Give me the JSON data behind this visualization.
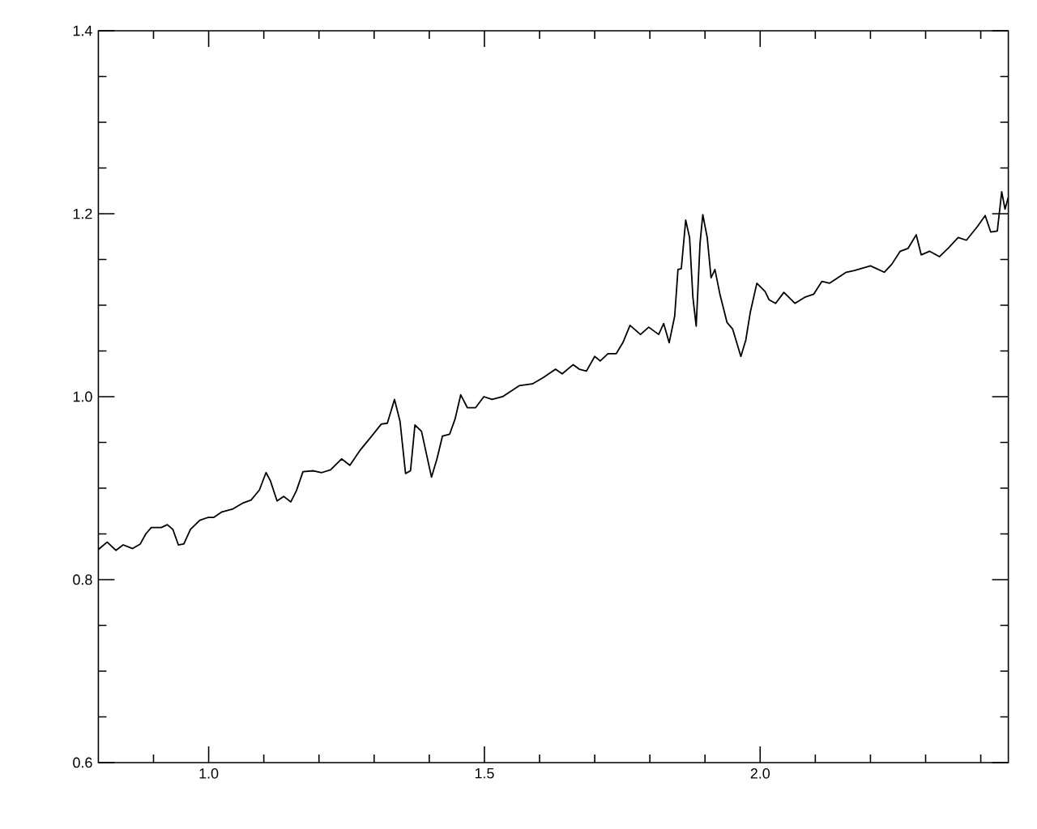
{
  "chart_data": {
    "type": "line",
    "xlim": [
      0.8,
      2.45
    ],
    "ylim": [
      0.6,
      1.4
    ],
    "xticks": [
      {
        "value": 0.9,
        "label": null
      },
      {
        "value": 1.0,
        "label": "1.0"
      },
      {
        "value": 1.1,
        "label": null
      },
      {
        "value": 1.2,
        "label": null
      },
      {
        "value": 1.3,
        "label": null
      },
      {
        "value": 1.4,
        "label": null
      },
      1.5,
      {
        "value": 1.6,
        "label": null
      },
      {
        "value": 1.7,
        "label": null
      },
      {
        "value": 1.8,
        "label": null
      },
      {
        "value": 1.9,
        "label": null
      },
      {
        "value": 2.0,
        "label": "2.0"
      },
      {
        "value": 2.1,
        "label": null
      },
      {
        "value": 2.2,
        "label": null
      },
      {
        "value": 2.3,
        "label": null
      },
      {
        "value": 2.4,
        "label": null
      }
    ],
    "yticks": [
      0.6,
      {
        "value": 0.65,
        "label": null
      },
      {
        "value": 0.7,
        "label": null
      },
      {
        "value": 0.75,
        "label": null
      },
      0.8,
      {
        "value": 0.85,
        "label": null
      },
      {
        "value": 0.9,
        "label": null
      },
      {
        "value": 0.95,
        "label": null
      },
      {
        "value": 1.0,
        "label": "1.0"
      },
      {
        "value": 1.05,
        "label": null
      },
      {
        "value": 1.1,
        "label": null
      },
      {
        "value": 1.15,
        "label": null
      },
      1.2,
      {
        "value": 1.25,
        "label": null
      },
      {
        "value": 1.3,
        "label": null
      },
      {
        "value": 1.35,
        "label": null
      },
      1.4
    ],
    "marker": "none",
    "line_style": "solid",
    "series": [
      {
        "color": "#000000",
        "x": [
          0.8,
          0.816,
          0.832,
          0.845,
          0.862,
          0.876,
          0.886,
          0.896,
          0.914,
          0.925,
          0.935,
          0.945,
          0.955,
          0.967,
          0.984,
          0.999,
          1.009,
          1.024,
          1.043,
          1.063,
          1.077,
          1.092,
          1.104,
          1.112,
          1.124,
          1.136,
          1.149,
          1.159,
          1.171,
          1.19,
          1.205,
          1.221,
          1.241,
          1.256,
          1.274,
          1.293,
          1.313,
          1.324,
          1.337,
          1.347,
          1.357,
          1.366,
          1.374,
          1.386,
          1.404,
          1.414,
          1.424,
          1.437,
          1.447,
          1.457,
          1.469,
          1.484,
          1.499,
          1.514,
          1.533,
          1.553,
          1.563,
          1.587,
          1.607,
          1.629,
          1.641,
          1.661,
          1.672,
          1.685,
          1.7,
          1.71,
          1.724,
          1.739,
          1.751,
          1.764,
          1.783,
          1.798,
          1.816,
          1.825,
          1.835,
          1.845,
          1.851,
          1.857,
          1.865,
          1.872,
          1.878,
          1.884,
          1.891,
          1.896,
          1.904,
          1.911,
          1.918,
          1.927,
          1.94,
          1.95,
          1.965,
          1.974,
          1.982,
          1.994,
          2.009,
          2.016,
          2.028,
          2.043,
          2.063,
          2.082,
          2.097,
          2.112,
          2.126,
          2.141,
          2.156,
          2.171,
          2.2,
          2.225,
          2.239,
          2.254,
          2.268,
          2.283,
          2.292,
          2.307,
          2.325,
          2.342,
          2.359,
          2.374,
          2.394,
          2.408,
          2.418,
          2.43,
          2.438,
          2.444,
          2.45
        ],
        "values": [
          0.833,
          0.841,
          0.832,
          0.838,
          0.834,
          0.839,
          0.85,
          0.857,
          0.857,
          0.86,
          0.855,
          0.838,
          0.839,
          0.855,
          0.865,
          0.868,
          0.868,
          0.874,
          0.877,
          0.884,
          0.887,
          0.898,
          0.917,
          0.908,
          0.886,
          0.891,
          0.885,
          0.897,
          0.918,
          0.919,
          0.917,
          0.92,
          0.932,
          0.925,
          0.941,
          0.955,
          0.97,
          0.971,
          0.997,
          0.973,
          0.916,
          0.919,
          0.969,
          0.962,
          0.912,
          0.932,
          0.957,
          0.959,
          0.976,
          1.002,
          0.988,
          0.988,
          1.0,
          0.997,
          1.0,
          1.008,
          1.012,
          1.014,
          1.021,
          1.03,
          1.025,
          1.035,
          1.03,
          1.028,
          1.044,
          1.039,
          1.047,
          1.047,
          1.059,
          1.078,
          1.068,
          1.076,
          1.068,
          1.08,
          1.059,
          1.088,
          1.139,
          1.14,
          1.193,
          1.174,
          1.109,
          1.077,
          1.168,
          1.199,
          1.174,
          1.13,
          1.139,
          1.112,
          1.081,
          1.074,
          1.044,
          1.062,
          1.092,
          1.124,
          1.115,
          1.106,
          1.102,
          1.114,
          1.102,
          1.109,
          1.112,
          1.126,
          1.124,
          1.13,
          1.136,
          1.138,
          1.143,
          1.136,
          1.145,
          1.159,
          1.162,
          1.177,
          1.155,
          1.159,
          1.153,
          1.163,
          1.174,
          1.171,
          1.186,
          1.198,
          1.18,
          1.181,
          1.224,
          1.205,
          1.218
        ]
      }
    ]
  }
}
